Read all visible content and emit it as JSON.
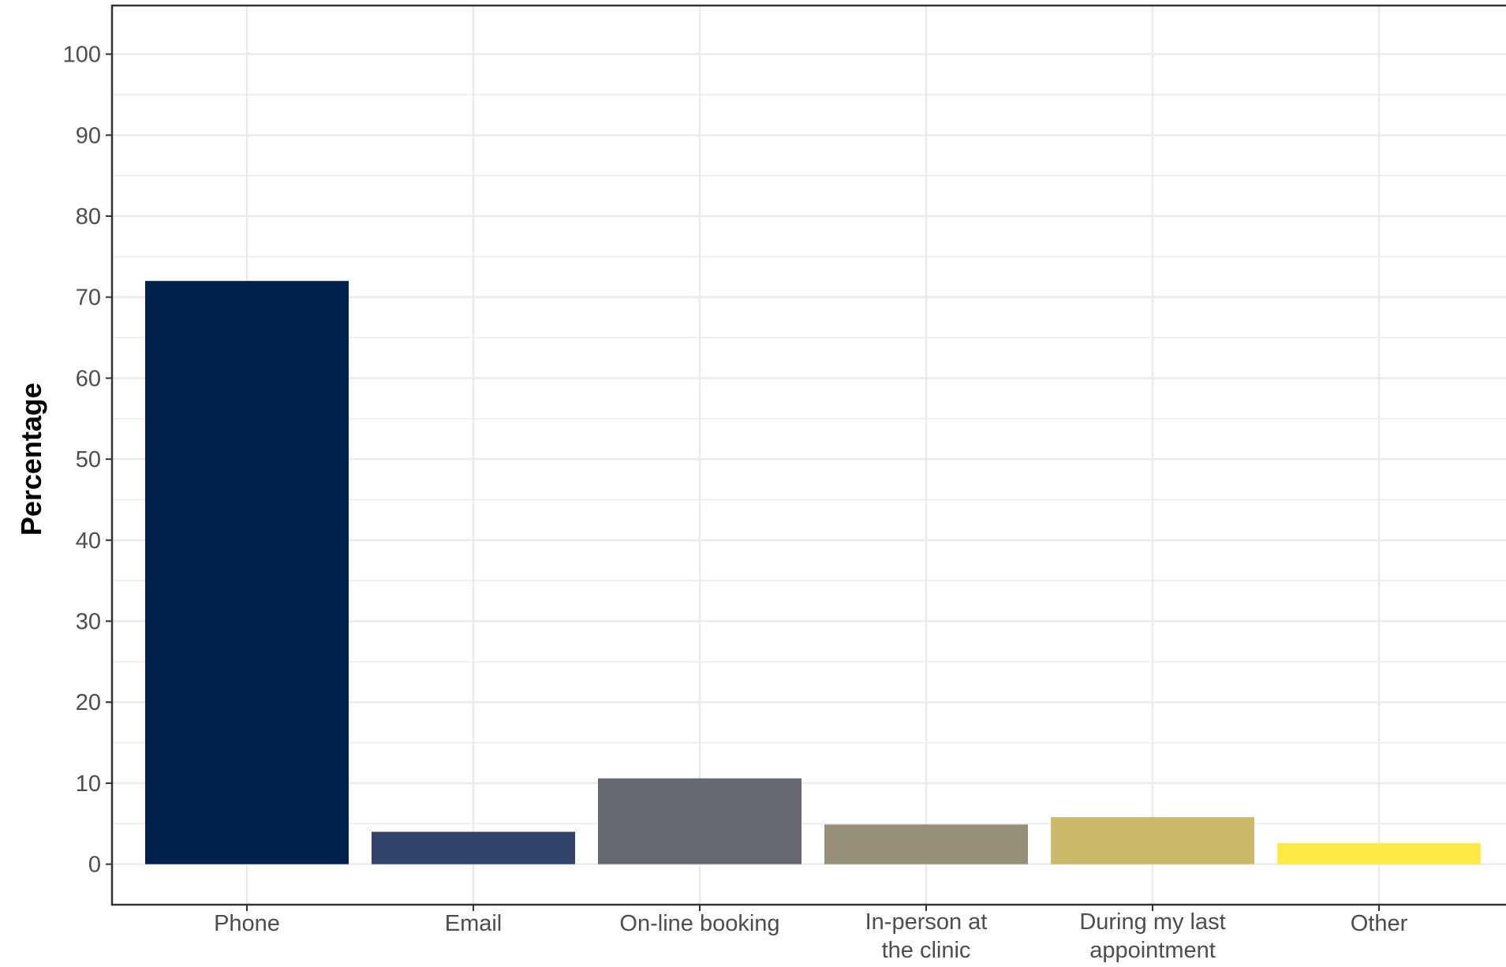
{
  "chart_data": {
    "type": "bar",
    "title": "",
    "xlabel": "",
    "ylabel": "Percentage",
    "ylim": [
      -5,
      106
    ],
    "yticks": [
      0,
      10,
      20,
      30,
      40,
      50,
      60,
      70,
      80,
      90,
      100
    ],
    "grid": true,
    "legend": "none",
    "categories": [
      [
        "Phone"
      ],
      [
        "Email"
      ],
      [
        "On-line booking"
      ],
      [
        "In-person at",
        "the clinic"
      ],
      [
        "During my last",
        "appointment"
      ],
      [
        "Other"
      ]
    ],
    "values": [
      72,
      4,
      10.6,
      4.9,
      5.8,
      2.6
    ],
    "colors": [
      "#00204D",
      "#31446B",
      "#666970",
      "#958F78",
      "#CBBA69",
      "#FFEA46"
    ]
  }
}
